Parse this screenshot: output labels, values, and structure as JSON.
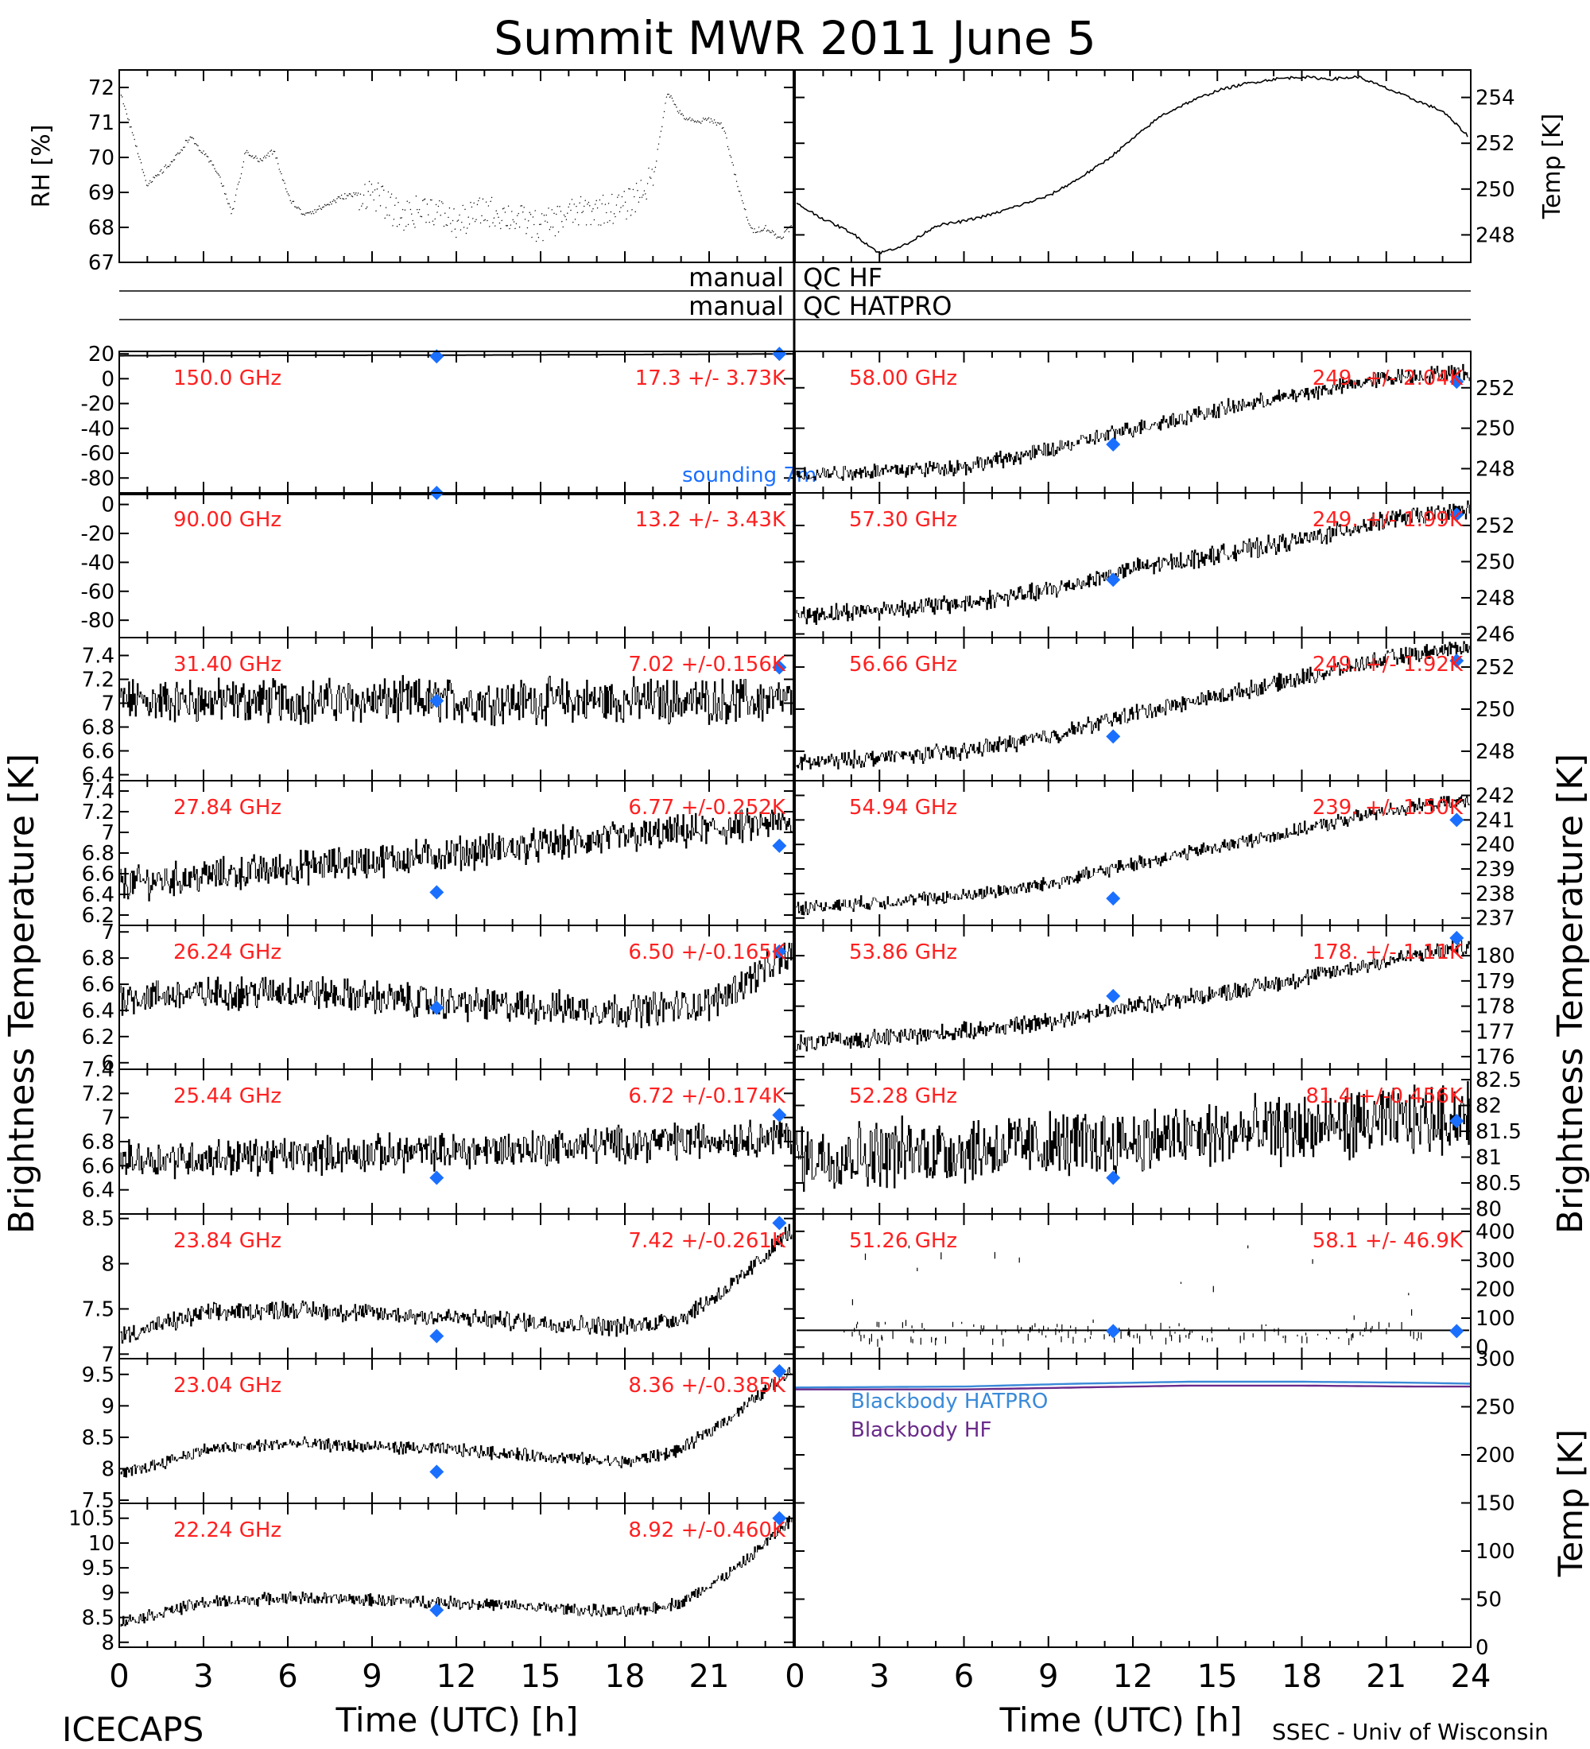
{
  "title": "Summit MWR 2011 June  5",
  "footer": {
    "left": "ICECAPS",
    "right": "SSEC - Univ of Wisconsin"
  },
  "colors": {
    "trace": "#000000",
    "label": "#ff2020",
    "marker": "#1a6fff",
    "hatpro": "#3a8ad8",
    "hf": "#6a2a8a"
  },
  "chart_data": [
    {
      "type": "scatter",
      "panel": "rh",
      "ylabel": "RH [%]",
      "ylim": [
        67,
        72.5
      ],
      "yticks": [
        67,
        68,
        69,
        70,
        71,
        72
      ],
      "xlim": [
        0,
        24
      ],
      "series": [
        {
          "x": [
            0,
            1,
            2,
            2.5,
            3,
            3.5,
            4,
            4.5,
            5,
            5.5,
            6,
            6.5,
            7,
            8,
            9,
            10,
            11,
            12,
            13,
            14,
            15,
            16,
            17,
            18,
            19,
            19.5,
            20,
            20.5,
            21,
            21.5,
            22,
            22.5,
            23,
            23.5,
            24
          ],
          "y": [
            72,
            69.2,
            70,
            70.6,
            70.1,
            69.6,
            68.4,
            70.2,
            69.9,
            70.2,
            68.9,
            68.4,
            68.5,
            68.9,
            69,
            68.3,
            68.6,
            68.1,
            68.5,
            68.3,
            68,
            68.4,
            68.5,
            68.6,
            69.4,
            71.9,
            71.2,
            71,
            71.1,
            70.9,
            69.2,
            67.9,
            68,
            67.7,
            68.1
          ]
        }
      ]
    },
    {
      "type": "line",
      "panel": "temp",
      "ylabel": "Temp [K]",
      "ylim": [
        246.8,
        255.2
      ],
      "yticks": [
        248,
        250,
        252,
        254
      ],
      "xlim": [
        0,
        24
      ],
      "series": [
        {
          "x": [
            0,
            1,
            2,
            3,
            4,
            5,
            6,
            7,
            8,
            9,
            10,
            11,
            12,
            13,
            14,
            15,
            16,
            17,
            18,
            19,
            20,
            21,
            22,
            23,
            24
          ],
          "y": [
            249.4,
            248.7,
            248.1,
            247.2,
            247.6,
            248.4,
            248.6,
            248.9,
            249.3,
            249.7,
            250.4,
            251.2,
            252.2,
            253.2,
            253.8,
            254.3,
            254.6,
            254.8,
            254.9,
            254.8,
            254.9,
            254.4,
            253.9,
            253.4,
            252.2
          ]
        }
      ]
    },
    {
      "type": "line",
      "panel": "qc",
      "labels": [
        "manual",
        "QC HF",
        "manual",
        "QC HATPRO"
      ]
    },
    {
      "type": "scatter",
      "panel": "hf-150",
      "freq": "150.0 GHz",
      "stat": "17.3 +/-  3.73K",
      "ylim": [
        -92,
        22
      ],
      "yticks": [
        20,
        0,
        -20,
        -40,
        -60,
        -80
      ],
      "xlim": [
        0,
        24
      ],
      "note": "sounding 7m",
      "series": [
        {
          "x": [
            0,
            6,
            12,
            18,
            24
          ],
          "y": [
            18.5,
            18.8,
            19,
            19.4,
            20
          ]
        }
      ],
      "markers": [
        {
          "x": 11.3,
          "y": 18
        },
        {
          "x": 23.5,
          "y": 20
        }
      ]
    },
    {
      "type": "scatter",
      "panel": "hf-90",
      "freq": "90.00 GHz",
      "stat": "13.2 +/-  3.43K",
      "ylim": [
        -92,
        8
      ],
      "yticks": [
        0,
        -20,
        -40,
        -60,
        -80
      ],
      "xlim": [
        0,
        24
      ],
      "series": [
        {
          "x": [
            0,
            6,
            12,
            18,
            24
          ],
          "y": [
            13.2,
            13.2,
            13.2,
            13.2,
            13.2
          ]
        }
      ],
      "markers": [
        {
          "x": 11.3,
          "y": 13
        }
      ]
    },
    {
      "type": "scatter",
      "panel": "k-31.40",
      "freq": "31.40 GHz",
      "stat": "7.02 +/-0.156K",
      "ylim": [
        6.35,
        7.55
      ],
      "yticks": [
        6.4,
        6.6,
        6.8,
        7.0,
        7.2,
        7.4
      ],
      "xlim": [
        0,
        24
      ],
      "series": [
        {
          "x": [
            0,
            24
          ],
          "y": [
            7.02,
            7.02
          ]
        }
      ],
      "markers": [
        {
          "x": 11.3,
          "y": 7.02
        },
        {
          "x": 23.5,
          "y": 7.3
        }
      ]
    },
    {
      "type": "scatter",
      "panel": "k-27.84",
      "freq": "27.84 GHz",
      "stat": "6.77 +/-0.252K",
      "ylim": [
        6.1,
        7.5
      ],
      "yticks": [
        6.2,
        6.4,
        6.6,
        6.8,
        7.0,
        7.2,
        7.4
      ],
      "xlim": [
        0,
        24
      ],
      "series": [
        {
          "x": [
            0,
            12,
            24
          ],
          "y": [
            6.5,
            6.8,
            7.1
          ]
        }
      ],
      "markers": [
        {
          "x": 11.3,
          "y": 6.42
        },
        {
          "x": 23.5,
          "y": 6.87
        }
      ]
    },
    {
      "type": "scatter",
      "panel": "k-26.24",
      "freq": "26.24 GHz",
      "stat": "6.50 +/-0.165K",
      "ylim": [
        5.95,
        7.05
      ],
      "yticks": [
        6.0,
        6.2,
        6.4,
        6.6,
        6.8,
        7.0
      ],
      "xlim": [
        0,
        24
      ],
      "series": [
        {
          "x": [
            0,
            6,
            12,
            18,
            21,
            24
          ],
          "y": [
            6.5,
            6.55,
            6.45,
            6.4,
            6.45,
            6.85
          ]
        }
      ],
      "markers": [
        {
          "x": 11.3,
          "y": 6.42
        },
        {
          "x": 23.5,
          "y": 6.85
        }
      ]
    },
    {
      "type": "scatter",
      "panel": "k-25.44",
      "freq": "25.44 GHz",
      "stat": "6.72 +/-0.174K",
      "ylim": [
        6.2,
        7.4
      ],
      "yticks": [
        6.4,
        6.6,
        6.8,
        7.0,
        7.2,
        7.4
      ],
      "xlim": [
        0,
        24
      ],
      "series": [
        {
          "x": [
            0,
            12,
            24
          ],
          "y": [
            6.65,
            6.72,
            6.85
          ]
        }
      ],
      "markers": [
        {
          "x": 11.3,
          "y": 6.5
        },
        {
          "x": 23.5,
          "y": 7.02
        }
      ]
    },
    {
      "type": "scatter",
      "panel": "k-23.84",
      "freq": "23.84 GHz",
      "stat": "7.42 +/-0.261K",
      "ylim": [
        6.95,
        8.55
      ],
      "yticks": [
        7.0,
        7.5,
        8.0,
        8.5
      ],
      "xlim": [
        0,
        24
      ],
      "series": [
        {
          "x": [
            0,
            3,
            6,
            12,
            18,
            20,
            22,
            24
          ],
          "y": [
            7.2,
            7.45,
            7.5,
            7.4,
            7.3,
            7.4,
            7.8,
            8.4
          ]
        }
      ],
      "markers": [
        {
          "x": 11.3,
          "y": 7.2
        },
        {
          "x": 23.5,
          "y": 8.45
        }
      ]
    },
    {
      "type": "scatter",
      "panel": "k-23.04",
      "freq": "23.04 GHz",
      "stat": "8.36 +/-0.385K",
      "ylim": [
        7.45,
        9.75
      ],
      "yticks": [
        7.5,
        8.0,
        8.5,
        9.0,
        9.5
      ],
      "xlim": [
        0,
        24
      ],
      "series": [
        {
          "x": [
            0,
            3,
            6,
            12,
            18,
            20,
            22,
            24
          ],
          "y": [
            7.9,
            8.3,
            8.4,
            8.3,
            8.1,
            8.3,
            8.9,
            9.6
          ]
        }
      ],
      "markers": [
        {
          "x": 11.3,
          "y": 7.95
        },
        {
          "x": 23.5,
          "y": 9.55
        }
      ]
    },
    {
      "type": "scatter",
      "panel": "k-22.24",
      "freq": "22.24 GHz",
      "stat": "8.92 +/-0.460K",
      "ylim": [
        7.9,
        10.8
      ],
      "yticks": [
        8.0,
        8.5,
        9.0,
        9.5,
        10.0,
        10.5
      ],
      "xlim": [
        0,
        24
      ],
      "series": [
        {
          "x": [
            0,
            3,
            6,
            12,
            18,
            20,
            22,
            24
          ],
          "y": [
            8.4,
            8.8,
            8.9,
            8.8,
            8.6,
            8.8,
            9.5,
            10.5
          ]
        }
      ],
      "markers": [
        {
          "x": 11.3,
          "y": 8.65
        },
        {
          "x": 23.5,
          "y": 10.5
        }
      ]
    },
    {
      "type": "scatter",
      "panel": "v-58.00",
      "freq": "58.00 GHz",
      "stat": "249.  +/-  2.04K",
      "ylim": [
        246.8,
        253.8
      ],
      "yticks": [
        248,
        250,
        252
      ],
      "xlim": [
        0,
        24
      ],
      "series": [
        {
          "x": [
            0,
            6,
            9,
            12,
            15,
            18,
            21,
            24
          ],
          "y": [
            247.7,
            248.1,
            248.9,
            250.0,
            250.9,
            251.7,
            252.5,
            252.8
          ]
        }
      ],
      "markers": [
        {
          "x": 11.3,
          "y": 249.2
        },
        {
          "x": 23.5,
          "y": 252.3
        }
      ]
    },
    {
      "type": "scatter",
      "panel": "v-57.30",
      "freq": "57.30 GHz",
      "stat": "249.  +/-  1.99K",
      "ylim": [
        245.8,
        253.8
      ],
      "yticks": [
        246,
        248,
        250,
        252
      ],
      "xlim": [
        0,
        24
      ],
      "series": [
        {
          "x": [
            0,
            6,
            9,
            12,
            15,
            18,
            21,
            24
          ],
          "y": [
            247.0,
            247.7,
            248.4,
            249.6,
            250.4,
            251.2,
            252.3,
            252.9
          ]
        }
      ],
      "markers": [
        {
          "x": 11.3,
          "y": 249.0
        },
        {
          "x": 23.5,
          "y": 252.6
        }
      ]
    },
    {
      "type": "scatter",
      "panel": "v-56.66",
      "freq": "56.66 GHz",
      "stat": "249.  +/-  1.92K",
      "ylim": [
        246.6,
        253.4
      ],
      "yticks": [
        248,
        250,
        252
      ],
      "xlim": [
        0,
        24
      ],
      "series": [
        {
          "x": [
            0,
            6,
            9,
            12,
            15,
            18,
            21,
            24
          ],
          "y": [
            247.4,
            248.0,
            248.7,
            249.8,
            250.6,
            251.5,
            252.4,
            253.0
          ]
        }
      ],
      "markers": [
        {
          "x": 11.3,
          "y": 248.7
        },
        {
          "x": 23.5,
          "y": 252.3
        }
      ]
    },
    {
      "type": "scatter",
      "panel": "v-54.94",
      "freq": "54.94 GHz",
      "stat": "239.  +/-  1.50K",
      "ylim": [
        236.7,
        242.6
      ],
      "yticks": [
        237,
        238,
        239,
        240,
        241,
        242
      ],
      "xlim": [
        0,
        24
      ],
      "series": [
        {
          "x": [
            0,
            6,
            9,
            12,
            15,
            18,
            21,
            24
          ],
          "y": [
            237.4,
            237.9,
            238.4,
            239.2,
            239.9,
            240.6,
            241.4,
            241.8
          ]
        }
      ],
      "markers": [
        {
          "x": 11.3,
          "y": 237.8
        },
        {
          "x": 23.5,
          "y": 241.0
        }
      ]
    },
    {
      "type": "scatter",
      "panel": "v-53.86",
      "freq": "53.86 GHz",
      "stat": "178.  +/-  1.11K",
      "ylim": [
        175.5,
        181.2
      ],
      "yticks": [
        176,
        177,
        178,
        179,
        180
      ],
      "xlim": [
        0,
        24
      ],
      "series": [
        {
          "x": [
            0,
            6,
            9,
            12,
            15,
            18,
            21,
            24
          ],
          "y": [
            176.5,
            177.0,
            177.4,
            178.0,
            178.5,
            179.1,
            179.8,
            180.4
          ]
        }
      ],
      "markers": [
        {
          "x": 11.3,
          "y": 178.4
        },
        {
          "x": 23.5,
          "y": 180.7
        }
      ]
    },
    {
      "type": "scatter",
      "panel": "v-52.28",
      "freq": "52.28 GHz",
      "stat": "81.4 +/-0.456K",
      "ylim": [
        79.9,
        82.7
      ],
      "yticks": [
        80.0,
        80.5,
        81.0,
        81.5,
        82.0,
        82.5
      ],
      "xlim": [
        0,
        24
      ],
      "series": [
        {
          "x": [
            0,
            12,
            24
          ],
          "y": [
            81.0,
            81.3,
            81.8
          ]
        }
      ],
      "markers": [
        {
          "x": 11.3,
          "y": 80.6
        },
        {
          "x": 23.5,
          "y": 81.7
        }
      ]
    },
    {
      "type": "scatter",
      "panel": "v-51.26",
      "freq": "51.26 GHz",
      "stat": "58.1 +/-  46.9K",
      "ylim": [
        -40,
        460
      ],
      "yticks": [
        0,
        100,
        200,
        300,
        400
      ],
      "xlim": [
        0,
        24
      ],
      "series": [
        {
          "x": [
            0,
            24
          ],
          "y": [
            58,
            58
          ]
        }
      ],
      "markers": [
        {
          "x": 11.3,
          "y": 55
        },
        {
          "x": 23.5,
          "y": 55
        }
      ]
    },
    {
      "type": "line",
      "panel": "blackbody",
      "ylabel": "Temp [K]",
      "ylim": [
        0,
        300
      ],
      "yticks": [
        0,
        50,
        100,
        150,
        200,
        250,
        300
      ],
      "xlim": [
        0,
        24
      ],
      "series": [
        {
          "name": "Blackbody HATPRO",
          "x": [
            0,
            6,
            10,
            14,
            18,
            22,
            24
          ],
          "y": [
            270,
            271,
            274,
            276,
            276,
            275,
            274
          ]
        },
        {
          "name": "Blackbody HF",
          "x": [
            0,
            6,
            10,
            14,
            18,
            22,
            24
          ],
          "y": [
            268,
            268,
            270,
            272,
            272,
            271,
            271
          ]
        }
      ]
    },
    {
      "type": "axis",
      "xlabel": "Time (UTC) [h]",
      "left_xticks": [
        0,
        3,
        6,
        9,
        12,
        15,
        18,
        21
      ],
      "right_xticks": [
        0,
        3,
        6,
        9,
        12,
        15,
        18,
        21,
        24
      ],
      "ylabel_left": "Brightness Temperature [K]",
      "ylabel_right": "Brightness Temperature [K]"
    }
  ]
}
